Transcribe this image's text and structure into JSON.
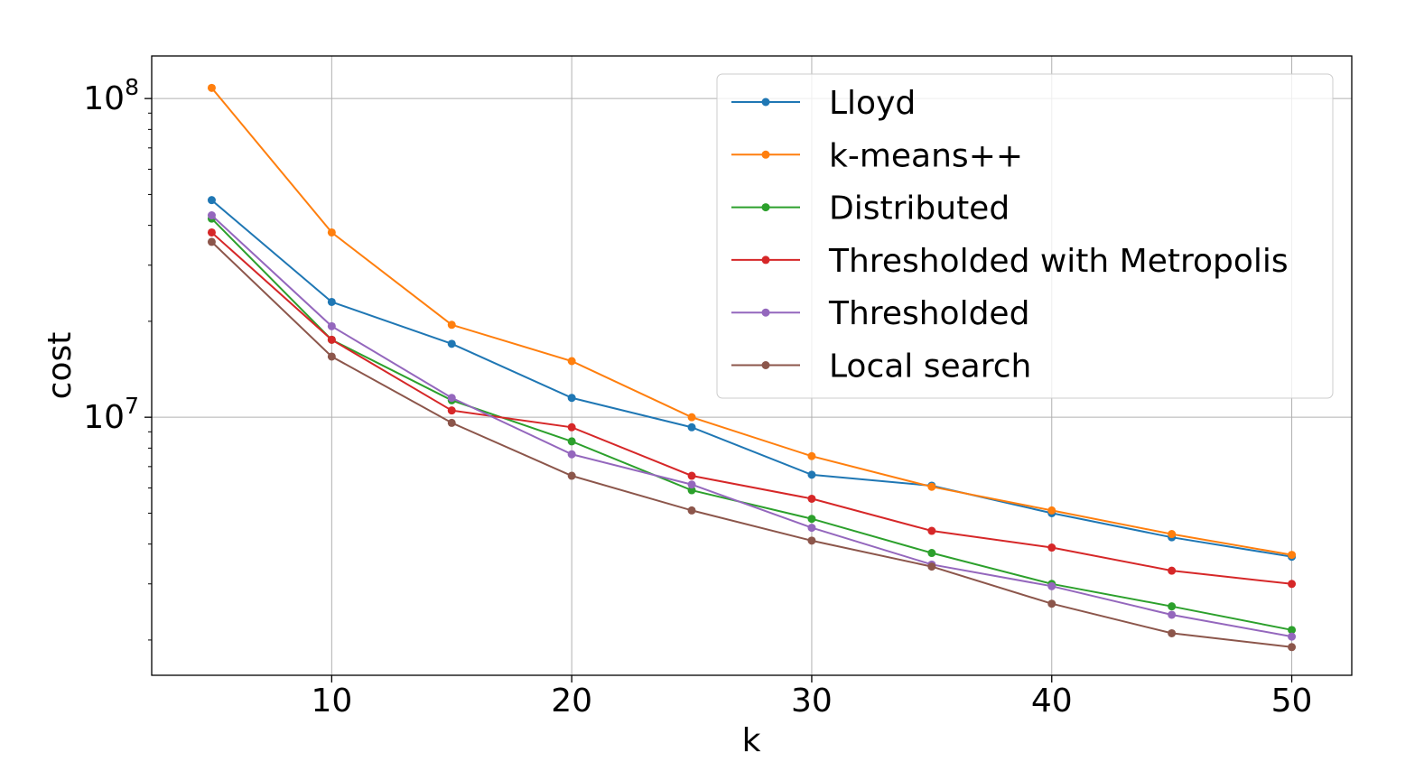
{
  "chart_data": {
    "type": "line",
    "title": "",
    "xlabel": "k",
    "ylabel": "cost",
    "yscale": "log",
    "xlim": [
      2.5,
      52.5
    ],
    "ylim": [
      1550000,
      136000000
    ],
    "grid": true,
    "legend_position": "top-right",
    "x": [
      5,
      10,
      15,
      20,
      25,
      30,
      35,
      40,
      45,
      50
    ],
    "x_ticks": [
      {
        "value": 10,
        "label": "10"
      },
      {
        "value": 20,
        "label": "20"
      },
      {
        "value": 30,
        "label": "30"
      },
      {
        "value": 40,
        "label": "40"
      },
      {
        "value": 50,
        "label": "50"
      }
    ],
    "y_ticks": [
      {
        "value": 10000000,
        "base": "10",
        "exp": "7"
      },
      {
        "value": 100000000,
        "base": "10",
        "exp": "8"
      }
    ],
    "series": [
      {
        "name": "Lloyd",
        "color": "#1f77b4",
        "values": [
          48000000,
          23000000,
          17000000,
          11500000,
          9300000,
          6600000,
          6100000,
          5000000,
          4200000,
          3650000
        ]
      },
      {
        "name": "k-means++",
        "color": "#ff7f0e",
        "values": [
          108000000,
          38000000,
          19500000,
          15000000,
          10000000,
          7550000,
          6050000,
          5100000,
          4300000,
          3700000
        ]
      },
      {
        "name": "Distributed",
        "color": "#2ca02c",
        "values": [
          42000000,
          17500000,
          11300000,
          8400000,
          5900000,
          4800000,
          3750000,
          3000000,
          2550000,
          2150000
        ]
      },
      {
        "name": "Thresholded with Metropolis",
        "color": "#d62728",
        "values": [
          38000000,
          17500000,
          10500000,
          9300000,
          6550000,
          5550000,
          4400000,
          3900000,
          3300000,
          3000000
        ]
      },
      {
        "name": "Thresholded",
        "color": "#9467bd",
        "values": [
          43000000,
          19300000,
          11500000,
          7650000,
          6150000,
          4500000,
          3450000,
          2950000,
          2400000,
          2050000
        ]
      },
      {
        "name": "Local search",
        "color": "#8c564b",
        "values": [
          35500000,
          15500000,
          9600000,
          6550000,
          5100000,
          4100000,
          3400000,
          2600000,
          2100000,
          1900000
        ]
      }
    ]
  }
}
